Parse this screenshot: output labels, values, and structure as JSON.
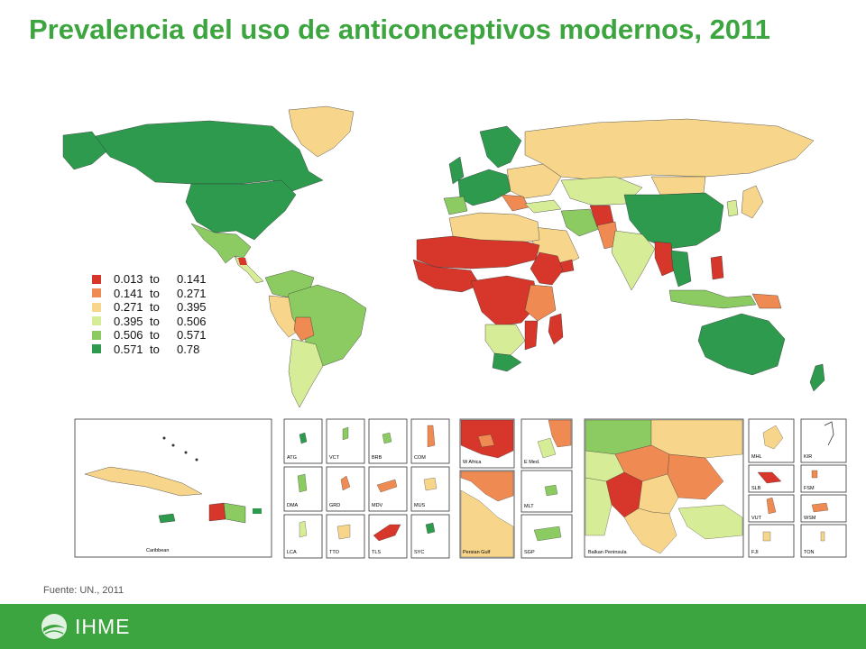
{
  "title": "Prevalencia del uso de anticonceptivos modernos, 2011",
  "legend": {
    "items": [
      {
        "min": "0.013",
        "to": "to",
        "max": "0.141",
        "color": "#d7372a"
      },
      {
        "min": "0.141",
        "to": "to",
        "max": "0.271",
        "color": "#ef8a52"
      },
      {
        "min": "0.271",
        "to": "to",
        "max": "0.395",
        "color": "#f7d68b"
      },
      {
        "min": "0.395",
        "to": "to",
        "max": "0.506",
        "color": "#d6ec96"
      },
      {
        "min": "0.506",
        "to": "to",
        "max": "0.571",
        "color": "#8ccb62"
      },
      {
        "min": "0.571",
        "to": "to",
        "max": "0.78",
        "color": "#2d9a4e"
      }
    ]
  },
  "insets": {
    "caribbean": "Caribbean",
    "small": [
      "ATG",
      "VCT",
      "BRB",
      "COM",
      "DMA",
      "GRD",
      "MDV",
      "MUS",
      "LCA",
      "TTO",
      "TLS",
      "SYC"
    ],
    "w_africa": "W Africa",
    "e_med": "E Med.",
    "persian_gulf": "Persian Gulf",
    "mlt": "MLT",
    "sgp": "SGP",
    "balkan": "Balkan Peninsula",
    "pacific": [
      "MHL",
      "KIR",
      "SLB",
      "FSM",
      "VUT",
      "WSM",
      "FJI",
      "TON"
    ]
  },
  "source": "Fuente: UN., 2011",
  "footer": {
    "logo": "IHME"
  }
}
